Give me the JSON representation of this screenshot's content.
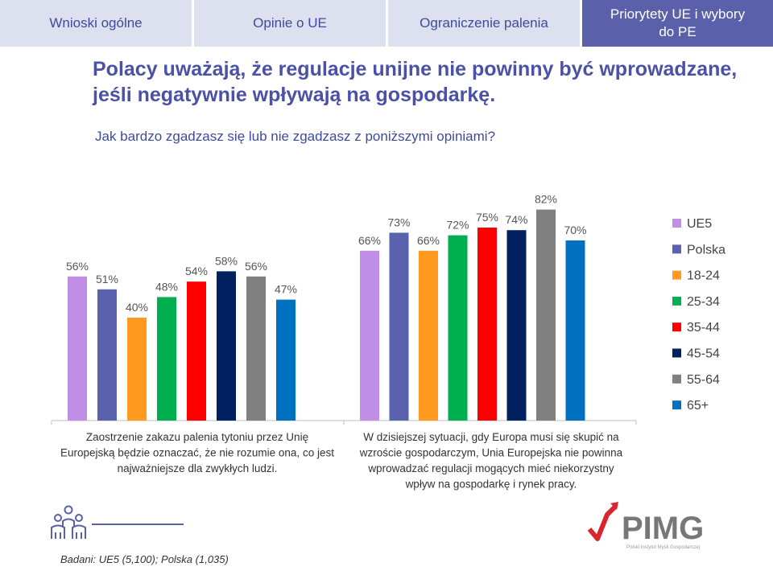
{
  "tabs": [
    {
      "label": "Wnioski ogólne",
      "active": false
    },
    {
      "label": "Opinie o UE",
      "active": false
    },
    {
      "label": "Ograniczenie palenia",
      "active": false
    },
    {
      "label": "Priorytety UE i wybory do PE",
      "active": true
    }
  ],
  "headline": "Polacy uważają, że regulacje unijne nie powinny być wprowadzane, jeśli negatywnie wpływają na gospodarkę.",
  "question": "Jak bardzo zgadzasz się lub nie zgadzasz z poniższymi opiniami?",
  "chart_data": {
    "type": "bar",
    "categories": [
      "Zaostrzenie zakazu palenia tytoniu przez Unię Europejską będzie oznaczać, że nie rozumie ona, co jest najważniejsze dla zwykłych ludzi.",
      "W dzisiejszej sytuacji, gdy Europa musi się skupić na wzroście gospodarczym, Unia Europejska nie powinna wprowadzać regulacji mogących mieć niekorzystny wpływ na gospodarkę i rynek pracy."
    ],
    "category_lines": [
      [
        "Zaostrzenie zakazu palenia tytoniu przez Unię",
        "Europejską będzie oznaczać, że nie rozumie ona, co jest",
        "najważniejsze dla zwykłych ludzi."
      ],
      [
        "W dzisiejszej sytuacji, gdy Europa musi się skupić na",
        "wzroście gospodarczym, Unia Europejska nie powinna",
        "wprowadzać regulacji mogących mieć niekorzystny",
        "wpływ na gospodarkę i rynek pracy."
      ]
    ],
    "series": [
      {
        "name": "UE5",
        "color": "#c08ee6",
        "values": [
          56,
          66
        ]
      },
      {
        "name": "Polska",
        "color": "#5b62ad",
        "values": [
          51,
          73
        ]
      },
      {
        "name": "18-24",
        "color": "#ff9a1e",
        "values": [
          40,
          66
        ]
      },
      {
        "name": "25-34",
        "color": "#00b050",
        "values": [
          48,
          72
        ]
      },
      {
        "name": "35-44",
        "color": "#ff0000",
        "values": [
          54,
          75
        ]
      },
      {
        "name": "45-54",
        "color": "#002060",
        "values": [
          58,
          74
        ]
      },
      {
        "name": "55-64",
        "color": "#808080",
        "values": [
          56,
          82
        ]
      },
      {
        "name": "65+",
        "color": "#0070c0",
        "values": [
          47,
          70
        ]
      }
    ],
    "value_suffix": "%",
    "ylim": [
      0,
      100
    ],
    "grid": false,
    "legend_position": "right"
  },
  "footer": {
    "source": "Badani: UE5 (5,100); Polska (1,035)",
    "logo_text": "PIMG",
    "logo_subtext": "Polski Instytut Myśli Gospodarczej"
  },
  "colors": {
    "tab_bg": "#dde0ee",
    "tab_active_bg": "#5a60aa",
    "accent": "#4a51a6",
    "logo_red": "#d9262c",
    "logo_gray": "#777777"
  },
  "icons": [
    "people-group-icon",
    "pimg-logo"
  ]
}
